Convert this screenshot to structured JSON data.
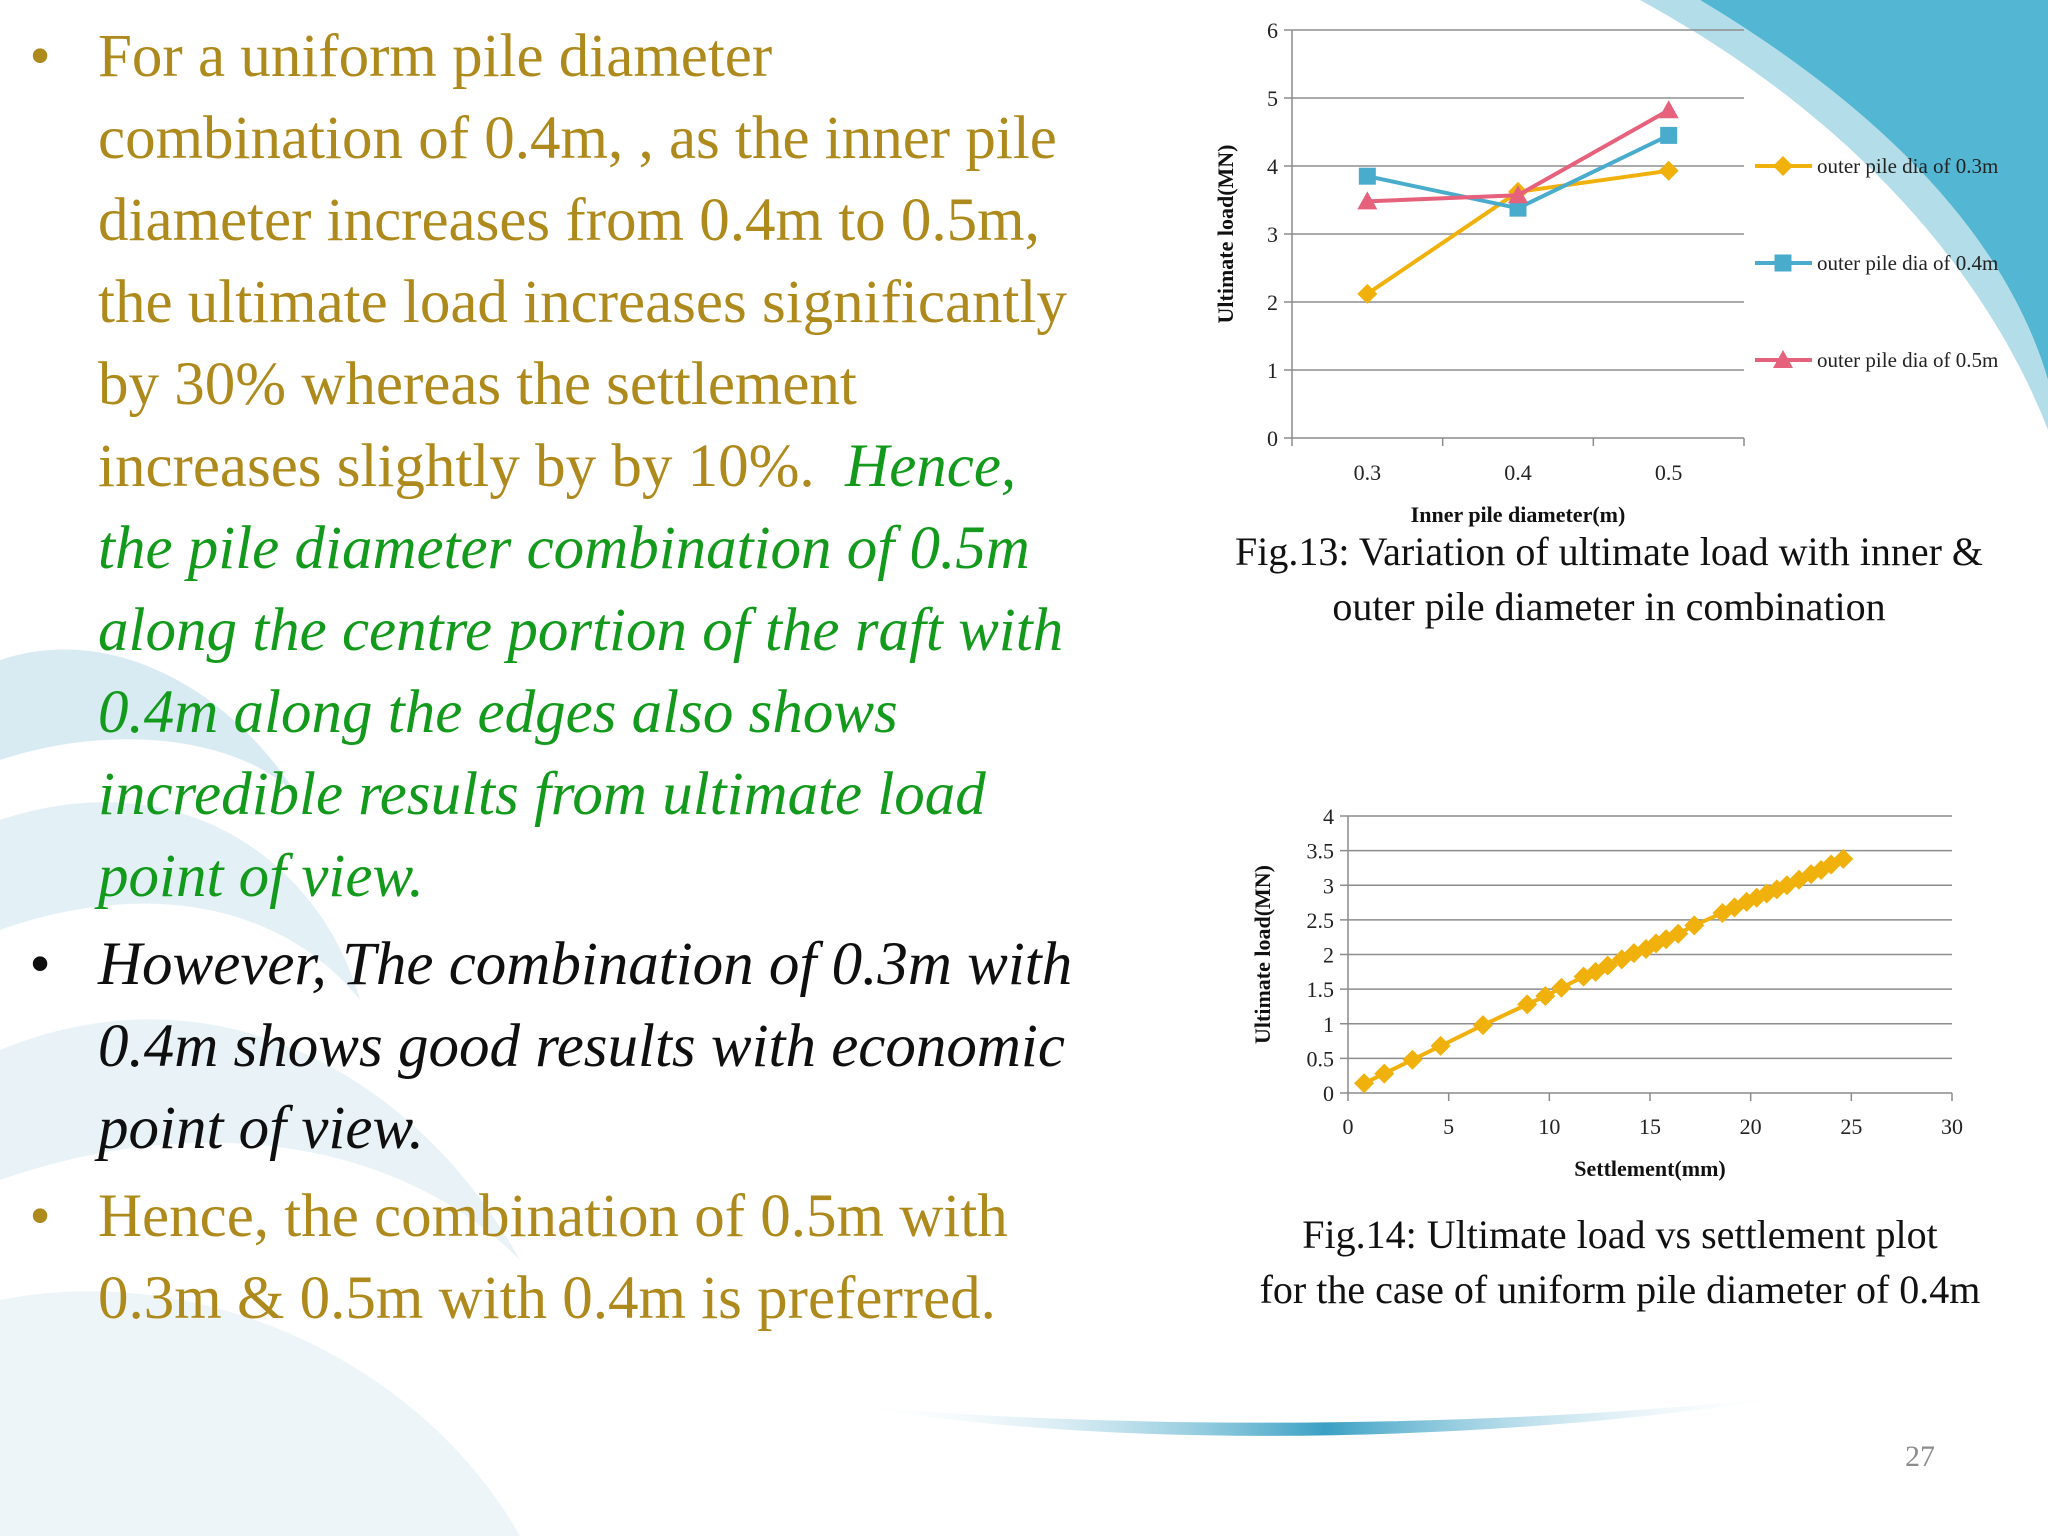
{
  "bullets": [
    {
      "marker": "•",
      "lines": [
        {
          "text": "For a uniform pile diameter",
          "style": "gold"
        },
        {
          "text": "combination of 0.4m, , as the inner pile",
          "style": "gold"
        },
        {
          "text": "diameter increases from 0.4m to 0.5m,",
          "style": "gold"
        },
        {
          "text": "the ultimate load increases significantly",
          "style": "gold"
        },
        {
          "text": "by 30% whereas the settlement",
          "style": "gold"
        },
        {
          "text": "increases slightly by by 10%.",
          "style": "gold",
          "tail": "Hence,",
          "tail_style": "green"
        },
        {
          "text": "the pile diameter combination of 0.5m",
          "style": "green"
        },
        {
          "text": "along the centre portion of the raft with",
          "style": "green"
        },
        {
          "text": "0.4m along the edges also shows",
          "style": "green"
        },
        {
          "text": "incredible results from ultimate load",
          "style": "green"
        },
        {
          "text": "point of view.",
          "style": "green"
        }
      ]
    },
    {
      "marker": "•",
      "lines": [
        {
          "text": "However, The combination of 0.3m with",
          "style": "black"
        },
        {
          "text": "0.4m shows good results with economic",
          "style": "black"
        },
        {
          "text": "point of view.",
          "style": "black"
        }
      ]
    },
    {
      "marker": "•",
      "lines": [
        {
          "text": "Hence, the combination of 0.5m with",
          "style": "gold"
        },
        {
          "text": "0.3m & 0.5m with 0.4m is preferred.",
          "style": "gold"
        }
      ]
    }
  ],
  "captions": {
    "fig13": [
      "Fig.13: Variation of ultimate load with inner &",
      "outer pile diameter in combination"
    ],
    "fig14": [
      "Fig.14: Ultimate load vs settlement plot",
      "for the case of uniform pile diameter of 0.4m"
    ]
  },
  "page_number": "27",
  "colors": {
    "gold": "#ae8a1c",
    "green": "#139a1c",
    "black": "#0f0f0f"
  },
  "chart_data": [
    {
      "type": "line",
      "title": "",
      "xlabel": "Inner pile diameter(m)",
      "ylabel": "Ultimate load(MN)",
      "categories": [
        "0.3",
        "0.4",
        "0.5"
      ],
      "ylim": [
        0,
        6
      ],
      "yticks": [
        "0",
        "1",
        "2",
        "3",
        "4",
        "5",
        "6"
      ],
      "grid": true,
      "legend_position": "right",
      "series": [
        {
          "name": "outer pile dia of 0.3m",
          "values": [
            2.12,
            3.62,
            3.93
          ],
          "color": "#f0b10c",
          "marker": "diamond"
        },
        {
          "name": "outer pile dia of 0.4m",
          "values": [
            3.85,
            3.38,
            4.45
          ],
          "color": "#4aaccd",
          "marker": "square"
        },
        {
          "name": "outer pile dia of 0.5m",
          "values": [
            3.48,
            3.57,
            4.82
          ],
          "color": "#e5617c",
          "marker": "triangle"
        }
      ]
    },
    {
      "type": "scatter",
      "title": "",
      "xlabel": "Settlement(mm)",
      "ylabel": "Ultimate load(MN)",
      "xlim": [
        0,
        30
      ],
      "ylim": [
        0,
        4
      ],
      "xticks": [
        "0",
        "5",
        "10",
        "15",
        "20",
        "25",
        "30"
      ],
      "yticks": [
        "0",
        "0.5",
        "1",
        "1.5",
        "2",
        "2.5",
        "3",
        "3.5",
        "4"
      ],
      "grid": true,
      "series": [
        {
          "color": "#f0b10c",
          "marker": "diamond",
          "points": [
            [
              0.8,
              0.14
            ],
            [
              1.8,
              0.28
            ],
            [
              3.2,
              0.48
            ],
            [
              4.6,
              0.68
            ],
            [
              6.7,
              0.98
            ],
            [
              8.9,
              1.28
            ],
            [
              9.8,
              1.4
            ],
            [
              10.6,
              1.52
            ],
            [
              11.7,
              1.68
            ],
            [
              12.3,
              1.75
            ],
            [
              12.9,
              1.84
            ],
            [
              13.6,
              1.93
            ],
            [
              14.2,
              2.02
            ],
            [
              14.8,
              2.08
            ],
            [
              15.3,
              2.16
            ],
            [
              15.8,
              2.22
            ],
            [
              16.4,
              2.3
            ],
            [
              17.2,
              2.42
            ],
            [
              18.6,
              2.6
            ],
            [
              19.2,
              2.68
            ],
            [
              19.8,
              2.76
            ],
            [
              20.3,
              2.82
            ],
            [
              20.8,
              2.88
            ],
            [
              21.3,
              2.94
            ],
            [
              21.8,
              3.0
            ],
            [
              22.4,
              3.08
            ],
            [
              23.0,
              3.16
            ],
            [
              23.5,
              3.22
            ],
            [
              24.0,
              3.3
            ],
            [
              24.6,
              3.38
            ]
          ]
        }
      ]
    }
  ]
}
